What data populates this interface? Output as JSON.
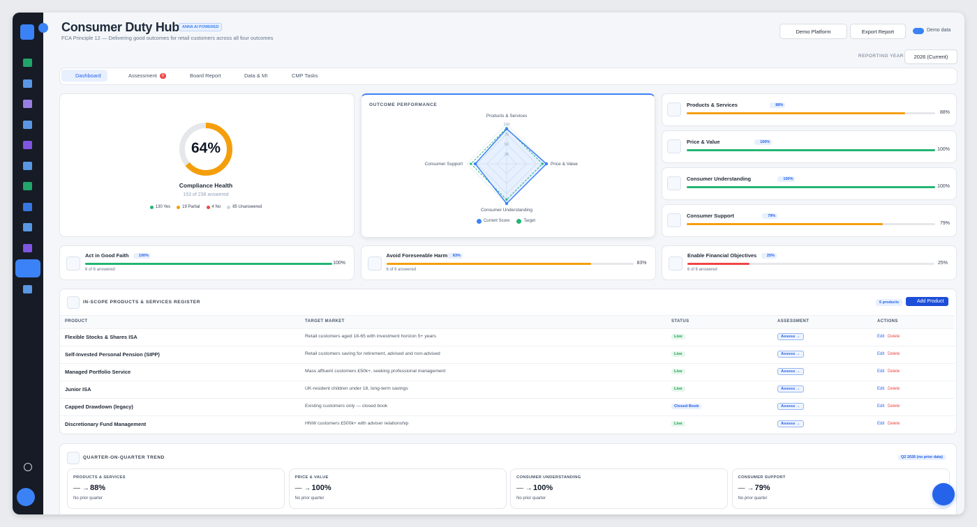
{
  "header": {
    "title": "Consumer Duty Hub",
    "badge": "ANNA AI POWERED",
    "subtitle": "FCA Principle 12 — Delivering good outcomes for retail customers across all four outcomes"
  },
  "controls": {
    "platform": "Demo Platform",
    "export": "Export Report",
    "demo_toggle": "Demo data",
    "year_label": "REPORTING YEAR",
    "year": "2026 (Current)"
  },
  "tabs": [
    {
      "label": "Dashboard"
    },
    {
      "label": "Assessment",
      "badge": "8"
    },
    {
      "label": "Board Report"
    },
    {
      "label": "Data & MI"
    },
    {
      "label": "CMP Tasks"
    }
  ],
  "health": {
    "value": 64,
    "value_label": "64%",
    "title": "Compliance Health",
    "answered": "153 of 238 answered",
    "legend": [
      {
        "label": "130 Yes",
        "color": "#22b573"
      },
      {
        "label": "19 Partial",
        "color": "#f59e0b"
      },
      {
        "label": "4 No",
        "color": "#ef4444"
      },
      {
        "label": "85 Unanswered",
        "color": "#d1d5db"
      }
    ]
  },
  "chart_data": {
    "type": "radar",
    "title": "OUTCOME PERFORMANCE",
    "categories": [
      "Products & Services",
      "Price & Value",
      "Consumer Understanding",
      "Consumer Support"
    ],
    "rlim": [
      0,
      100
    ],
    "rticks": [
      25,
      50,
      75,
      100
    ],
    "series": [
      {
        "name": "Current Score",
        "color": "#3b82f6",
        "values": [
          88,
          100,
          100,
          79
        ]
      },
      {
        "name": "Target",
        "color": "#22b573",
        "values": [
          90,
          90,
          90,
          90
        ]
      }
    ]
  },
  "outcomes": [
    {
      "name": "Products & Services",
      "value": 88,
      "value_label": "88%",
      "color": "#f59e0b"
    },
    {
      "name": "Price & Value",
      "value": 100,
      "value_label": "100%",
      "color": "#22b573"
    },
    {
      "name": "Consumer Understanding",
      "value": 100,
      "value_label": "100%",
      "color": "#22b573"
    },
    {
      "name": "Consumer Support",
      "value": 79,
      "value_label": "79%",
      "color": "#f59e0b"
    }
  ],
  "principles": [
    {
      "name": "Act in Good Faith",
      "value": 100,
      "value_label": "100%",
      "answered": "6 of 6 answered",
      "color": "#22b573"
    },
    {
      "name": "Avoid Foreseeable Harm",
      "value": 83,
      "value_label": "83%",
      "answered": "6 of 6 answered",
      "color": "#f59e0b"
    },
    {
      "name": "Enable Financial Objectives",
      "value": 25,
      "value_label": "25%",
      "answered": "6 of 6 answered",
      "color": "#ef4444"
    }
  ],
  "register": {
    "title": "IN-SCOPE PRODUCTS & SERVICES REGISTER",
    "count": "6 products",
    "add": "Add Product",
    "columns": [
      "PRODUCT",
      "TARGET MARKET",
      "STATUS",
      "ASSESSMENT",
      "ACTIONS"
    ],
    "actions": {
      "assess": "Assess →",
      "edit": "Edit",
      "delete": "Delete"
    },
    "rows": [
      {
        "product": "Flexible Stocks & Shares ISA",
        "market": "Retail customers aged 18-65 with investment horizon 5+ years",
        "status": "Live",
        "status_color": "#16a34a"
      },
      {
        "product": "Self-Invested Personal Pension (SIPP)",
        "market": "Retail customers saving for retirement, advised and non-advised",
        "status": "Live",
        "status_color": "#16a34a"
      },
      {
        "product": "Managed Portfolio Service",
        "market": "Mass affluent customers £50k+, seeking professional management",
        "status": "Live",
        "status_color": "#16a34a"
      },
      {
        "product": "Junior ISA",
        "market": "UK-resident children under 18, long-term savings",
        "status": "Live",
        "status_color": "#16a34a"
      },
      {
        "product": "Capped Drawdown (legacy)",
        "market": "Existing customers only — closed book",
        "status": "Closed Book",
        "status_color": "#2563eb"
      },
      {
        "product": "Discretionary Fund Management",
        "market": "HNW customers £500k+ with adviser relationship",
        "status": "Live",
        "status_color": "#16a34a"
      }
    ]
  },
  "trend": {
    "title": "QUARTER-ON-QUARTER TREND",
    "badge": "Q2 2026 (no prior data)",
    "cards": [
      {
        "label": "PRODUCTS & SERVICES",
        "arrow": "— →",
        "value": "88%",
        "note": "No prior quarter"
      },
      {
        "label": "PRICE & VALUE",
        "arrow": "— →",
        "value": "100%",
        "note": "No prior quarter"
      },
      {
        "label": "CONSUMER UNDERSTANDING",
        "arrow": "— →",
        "value": "100%",
        "note": "No prior quarter"
      },
      {
        "label": "CONSUMER SUPPORT",
        "arrow": "— →",
        "value": "79%",
        "note": "No prior quarter"
      }
    ]
  }
}
